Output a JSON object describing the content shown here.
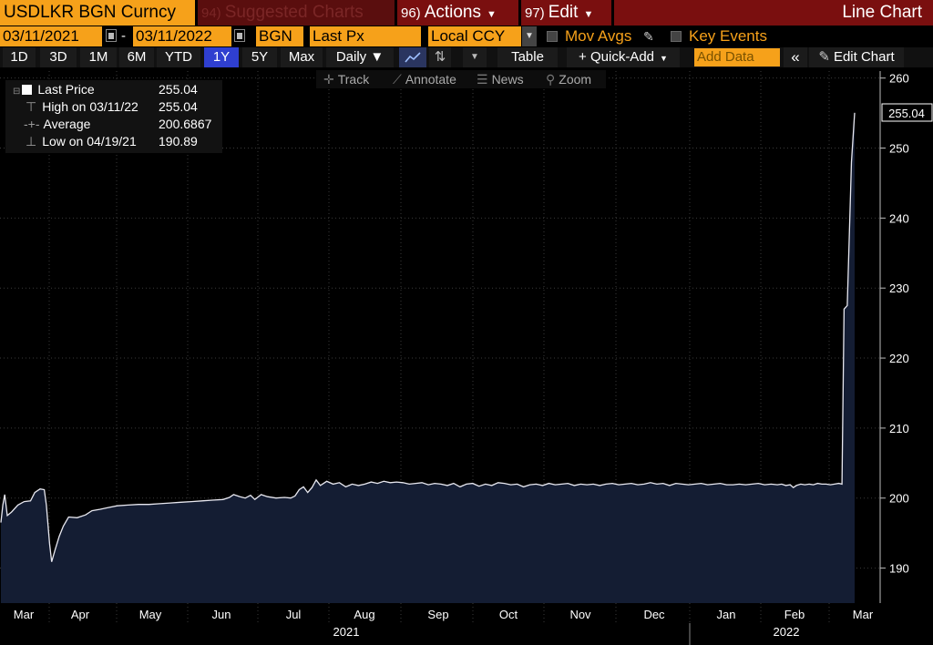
{
  "header": {
    "security": "USDLKR BGN Curncy",
    "suggested_num": "94)",
    "suggested_label": "Suggested Charts",
    "actions_num": "96)",
    "actions_label": "Actions",
    "edit_num": "97)",
    "edit_label": "Edit",
    "title": "Line Chart"
  },
  "controls": {
    "start_date": "03/11/2021",
    "end_date": "03/11/2022",
    "source": "BGN",
    "field": "Last Px",
    "currency": "Local CCY",
    "mov_avgs": "Mov Avgs",
    "key_events": "Key Events"
  },
  "toolbar": {
    "ranges": [
      "1D",
      "3D",
      "1M",
      "6M",
      "YTD",
      "1Y",
      "5Y",
      "Max"
    ],
    "selected_range": "1Y",
    "frequency": "Daily ▼",
    "table": "Table",
    "quick_add": "+ Quick-Add",
    "add_data": "Add Data",
    "edit_chart": "Edit Chart"
  },
  "chart_tools": {
    "track": "Track",
    "annotate": "Annotate",
    "news": "News",
    "zoom": "Zoom"
  },
  "legend": {
    "last_label": "Last Price",
    "last_value": "255.04",
    "high_label": "High on 03/11/22",
    "high_value": "255.04",
    "avg_label": "Average",
    "avg_value": "200.6867",
    "low_label": "Low on 04/19/21",
    "low_value": "190.89"
  },
  "colors": {
    "orange": "#f6a11a",
    "dark_red": "#7a0f0f",
    "line": "#e8e8f0",
    "fill": "#141d33",
    "selected": "#2f3fd0"
  },
  "chart_data": {
    "type": "area",
    "ylim": [
      185,
      261
    ],
    "yticks": [
      190,
      200,
      210,
      220,
      230,
      240,
      250,
      260
    ],
    "months": [
      "Mar",
      "Apr",
      "May",
      "Jun",
      "Jul",
      "Aug",
      "Sep",
      "Oct",
      "Nov",
      "Dec",
      "Jan",
      "Feb",
      "Mar"
    ],
    "years": [
      "2021",
      "2022"
    ],
    "last_price_label": "255.04",
    "series": [
      {
        "values": [
          [
            0,
            196.5
          ],
          [
            0.09,
            199.0
          ],
          [
            0.18,
            200.5
          ],
          [
            0.3,
            197.5
          ],
          [
            0.5,
            198.0
          ],
          [
            0.8,
            199.0
          ],
          [
            1.1,
            199.5
          ],
          [
            1.4,
            199.6
          ],
          [
            1.6,
            200.8
          ],
          [
            1.85,
            201.3
          ],
          [
            2.05,
            201.2
          ],
          [
            2.15,
            199.0
          ],
          [
            2.3,
            193.5
          ],
          [
            2.4,
            190.89
          ],
          [
            2.55,
            192.5
          ],
          [
            2.75,
            194.5
          ],
          [
            2.95,
            196.0
          ],
          [
            3.2,
            197.3
          ],
          [
            3.6,
            197.2
          ],
          [
            4.0,
            197.6
          ],
          [
            4.3,
            198.2
          ],
          [
            4.7,
            198.4
          ],
          [
            5.0,
            198.6
          ],
          [
            5.5,
            198.9
          ],
          [
            6.0,
            199.0
          ],
          [
            6.5,
            199.1
          ],
          [
            7.0,
            199.1
          ],
          [
            7.5,
            199.2
          ],
          [
            8.0,
            199.3
          ],
          [
            8.5,
            199.4
          ],
          [
            9.0,
            199.5
          ],
          [
            9.5,
            199.6
          ],
          [
            10.0,
            199.7
          ],
          [
            10.5,
            199.8
          ],
          [
            10.8,
            200.1
          ],
          [
            11.0,
            200.5
          ],
          [
            11.3,
            200.2
          ],
          [
            11.55,
            200.0
          ],
          [
            11.8,
            200.4
          ],
          [
            12.0,
            199.8
          ],
          [
            12.3,
            200.5
          ],
          [
            12.6,
            200.2
          ],
          [
            13.0,
            200.0
          ],
          [
            13.4,
            200.1
          ],
          [
            13.7,
            200.0
          ],
          [
            13.9,
            200.3
          ],
          [
            14.1,
            201.2
          ],
          [
            14.3,
            201.6
          ],
          [
            14.5,
            200.8
          ],
          [
            14.7,
            201.5
          ],
          [
            14.9,
            202.6
          ],
          [
            15.1,
            201.8
          ],
          [
            15.4,
            202.4
          ],
          [
            15.7,
            202.0
          ],
          [
            16.0,
            202.2
          ],
          [
            16.3,
            201.6
          ],
          [
            16.6,
            202.0
          ],
          [
            16.9,
            201.8
          ],
          [
            17.2,
            202.0
          ],
          [
            17.5,
            202.3
          ],
          [
            17.8,
            202.1
          ],
          [
            18.1,
            202.4
          ],
          [
            18.4,
            202.2
          ],
          [
            18.7,
            202.3
          ],
          [
            19.0,
            202.2
          ],
          [
            19.3,
            202.0
          ],
          [
            19.6,
            202.1
          ],
          [
            19.9,
            202.2
          ],
          [
            20.2,
            201.9
          ],
          [
            20.5,
            202.1
          ],
          [
            20.8,
            202.0
          ],
          [
            21.1,
            201.8
          ],
          [
            21.4,
            202.1
          ],
          [
            21.7,
            201.6
          ],
          [
            22.0,
            202.0
          ],
          [
            22.3,
            202.1
          ],
          [
            22.6,
            201.7
          ],
          [
            22.9,
            202.0
          ],
          [
            23.2,
            201.8
          ],
          [
            23.5,
            202.2
          ],
          [
            23.8,
            202.1
          ],
          [
            24.1,
            201.9
          ],
          [
            24.4,
            202.0
          ],
          [
            24.7,
            201.6
          ],
          [
            25.0,
            201.9
          ],
          [
            25.3,
            202.0
          ],
          [
            25.6,
            201.8
          ],
          [
            25.9,
            202.1
          ],
          [
            26.2,
            201.9
          ],
          [
            26.5,
            202.0
          ],
          [
            26.8,
            202.1
          ],
          [
            27.1,
            201.8
          ],
          [
            27.4,
            202.0
          ],
          [
            27.7,
            201.9
          ],
          [
            28.0,
            202.0
          ],
          [
            28.3,
            201.8
          ],
          [
            28.6,
            202.0
          ],
          [
            28.9,
            202.1
          ],
          [
            29.2,
            201.9
          ],
          [
            29.5,
            202.0
          ],
          [
            29.8,
            202.1
          ],
          [
            30.1,
            201.9
          ],
          [
            30.4,
            202.0
          ],
          [
            30.7,
            202.2
          ],
          [
            31.0,
            202.0
          ],
          [
            31.3,
            202.1
          ],
          [
            31.6,
            201.8
          ],
          [
            31.9,
            202.1
          ],
          [
            32.2,
            202.0
          ],
          [
            32.5,
            201.9
          ],
          [
            32.8,
            202.0
          ],
          [
            33.1,
            202.1
          ],
          [
            33.4,
            201.9
          ],
          [
            33.7,
            202.0
          ],
          [
            34.0,
            202.1
          ],
          [
            34.3,
            201.9
          ],
          [
            34.6,
            201.9
          ],
          [
            34.9,
            202.0
          ],
          [
            35.2,
            201.9
          ],
          [
            35.5,
            202.0
          ],
          [
            35.8,
            202.1
          ],
          [
            36.1,
            201.9
          ],
          [
            36.4,
            202.0
          ],
          [
            36.7,
            201.9
          ],
          [
            36.9,
            202.0
          ],
          [
            37.1,
            201.8
          ],
          [
            37.3,
            201.9
          ],
          [
            37.45,
            201.5
          ],
          [
            37.6,
            201.8
          ],
          [
            37.8,
            202.0
          ],
          [
            38.0,
            201.9
          ],
          [
            38.2,
            202.0
          ],
          [
            38.4,
            201.9
          ],
          [
            38.6,
            202.1
          ],
          [
            38.8,
            202.0
          ],
          [
            39.0,
            202.0
          ],
          [
            39.2,
            201.9
          ],
          [
            39.4,
            202.0
          ],
          [
            39.6,
            202.1
          ],
          [
            39.75,
            202.0
          ],
          [
            39.85,
            227.0
          ],
          [
            40.0,
            227.5
          ],
          [
            40.2,
            248.0
          ],
          [
            40.35,
            255.04
          ]
        ]
      }
    ]
  }
}
